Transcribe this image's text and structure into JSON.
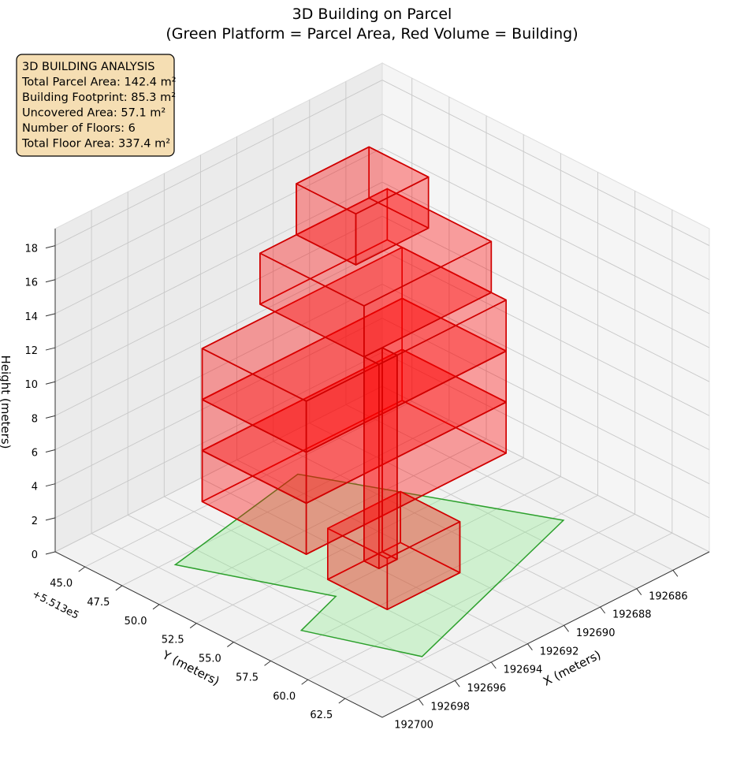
{
  "chart_data": {
    "type": "box3d",
    "title": "3D Building on Parcel",
    "subtitle": "(Green Platform = Parcel Area, Red Volume = Building)",
    "annotations": [
      "3D BUILDING ANALYSIS",
      "Total Parcel Area: 142.4 m²",
      "Building Footprint: 85.3 m²",
      "Uncovered Area: 57.1 m²",
      "Number of Floors: 6",
      "Total Floor Area: 337.4 m²"
    ],
    "xlabel": "X (meters)",
    "ylabel": "Y (meters)",
    "zlabel": "Height (meters)",
    "y_offset_label": "+5.513e5",
    "xlim": [
      192684,
      192702
    ],
    "ylim": [
      43,
      65
    ],
    "zlim": [
      0,
      19
    ],
    "xticks": [
      192686,
      192688,
      192690,
      192692,
      192694,
      192696,
      192698,
      192700
    ],
    "yticks": [
      {
        "value": 45,
        "label": "45.0"
      },
      47.5,
      {
        "value": 50,
        "label": "50.0"
      },
      52.5,
      {
        "value": 55,
        "label": "55.0"
      },
      57.5,
      {
        "value": 60,
        "label": "60.0"
      },
      62.5
    ],
    "zticks": [
      0,
      2,
      4,
      6,
      8,
      10,
      12,
      14,
      16,
      18
    ],
    "grid": true,
    "parcel": {
      "color": "#2ca02c",
      "fill": "#90ee90",
      "x": [
        192699.4,
        192691.1,
        192686.3,
        192697.6,
        192699.5,
        192696.7
      ],
      "y": [
        47.9,
        46.0,
        58.0,
        62.3,
        56.5,
        55.4
      ]
    },
    "building_color": "#ff0000",
    "boxes": [
      {
        "x": [
          192692,
          192696
        ],
        "y": [
          54,
          58
        ],
        "z": [
          0,
          3
        ]
      },
      {
        "x": [
          192687,
          192698
        ],
        "y": [
          48,
          55
        ],
        "z": [
          3,
          6
        ]
      },
      {
        "x": [
          192687,
          192698
        ],
        "y": [
          48,
          55
        ],
        "z": [
          6,
          9
        ]
      },
      {
        "x": [
          192687,
          192698
        ],
        "y": [
          48,
          55
        ],
        "z": [
          9,
          12
        ]
      },
      {
        "x": [
          192687,
          192694
        ],
        "y": [
          47,
          54
        ],
        "z": [
          12,
          15
        ]
      },
      {
        "x": [
          192688,
          192692
        ],
        "y": [
          47,
          51
        ],
        "z": [
          15,
          18
        ]
      },
      {
        "x": [
          192693,
          192694
        ],
        "y": [
          54,
          55
        ],
        "z": [
          0,
          12
        ]
      }
    ]
  }
}
